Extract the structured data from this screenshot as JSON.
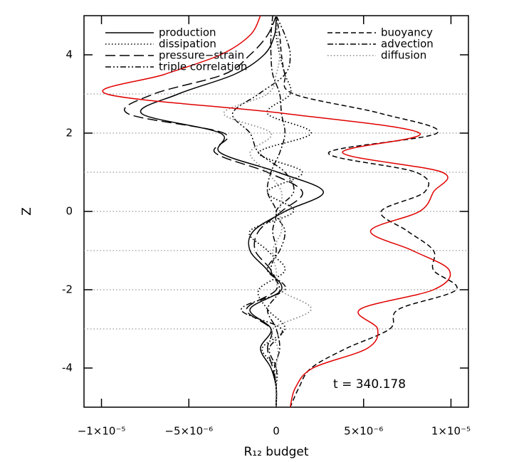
{
  "chart_data": {
    "type": "line",
    "x_label": "R₁₂ budget",
    "y_label": "Z",
    "annotation": "t = 340.178",
    "xlim": [
      -1.1e-05,
      1.1e-05
    ],
    "ylim": [
      -5,
      5
    ],
    "xticks": [
      {
        "value": -1e-05,
        "label": "−1×10⁻⁵"
      },
      {
        "value": -5e-06,
        "label": "−5×10⁻⁶"
      },
      0,
      {
        "value": 5e-06,
        "label": "5×10⁻⁶"
      },
      {
        "value": 1e-05,
        "label": "1×10⁻⁵"
      }
    ],
    "yticks": [
      -4,
      -2,
      0,
      2,
      4
    ],
    "reference_lines": [
      3,
      2,
      1,
      0,
      -1,
      -2,
      -3
    ],
    "y": [
      5,
      4.5,
      4,
      3.5,
      3,
      2.5,
      2,
      1.5,
      1,
      0.5,
      0,
      -0.5,
      -1,
      -1.5,
      -2,
      -2.5,
      -3,
      -3.5,
      -4,
      -4.5,
      -5
    ],
    "series": [
      {
        "name": "production",
        "color": "#000000",
        "style": "solid",
        "values": [
          0,
          -1e-07,
          -7e-07,
          -2.4e-06,
          -5.6e-06,
          -7.7e-06,
          -3.2e-06,
          -3.2e-06,
          1e-07,
          2.7e-06,
          5e-07,
          -1.3e-06,
          -1.5e-06,
          -5e-07,
          3e-07,
          -1.5e-06,
          -3e-07,
          -9e-07,
          -3e-07,
          0,
          0
        ]
      },
      {
        "name": "dissipation",
        "color": "#000000",
        "style": "dotted",
        "values": [
          0,
          0,
          2e-07,
          5e-07,
          8e-07,
          -5e-07,
          2e-06,
          -1e-06,
          1.5e-06,
          -5e-07,
          1e-06,
          -1.5e-06,
          -5e-07,
          5e-07,
          -1e-06,
          -5e-07,
          5e-07,
          -8e-07,
          0,
          0,
          0
        ]
      },
      {
        "name": "pressure−strain",
        "color": "#000000",
        "style": "longdash",
        "values": [
          0,
          -5e-07,
          -1.5e-06,
          -3e-06,
          -7e-06,
          -8.5e-06,
          -3e-06,
          -3.5e-06,
          -5e-07,
          1.5e-06,
          3e-07,
          -1e-06,
          -1.2e-06,
          -3e-07,
          0,
          -1.7e-06,
          -3e-07,
          -5e-07,
          -2e-07,
          0,
          0
        ]
      },
      {
        "name": "triple correlation",
        "color": "#000000",
        "style": "dashdotdot",
        "values": [
          0,
          5e-07,
          8e-07,
          5e-07,
          -1e-06,
          -2.5e-06,
          -1.5e-06,
          -1e-06,
          5e-07,
          1e-06,
          0,
          5e-07,
          2e-07,
          -5e-07,
          5e-07,
          -2e-06,
          3e-07,
          -4e-07,
          0,
          0,
          0
        ]
      },
      {
        "name": "buoyancy",
        "color": "#000000",
        "style": "dashed",
        "values": [
          0,
          2e-07,
          3e-07,
          5e-07,
          1e-06,
          6e-06,
          9.2e-06,
          3e-06,
          8e-06,
          8.5e-06,
          6e-06,
          7.5e-06,
          9e-06,
          9e-06,
          1.03e-05,
          7e-06,
          6.5e-06,
          4e-06,
          2e-06,
          1.3e-06,
          8e-07
        ]
      },
      {
        "name": "advection",
        "color": "#000000",
        "style": "dashdot",
        "values": [
          -2e-07,
          -3e-07,
          -3e-07,
          -2e-07,
          2e-07,
          3e-07,
          5e-07,
          2e-07,
          -3e-07,
          -5e-07,
          0,
          -2e-07,
          0,
          -3e-07,
          2e-07,
          -5e-07,
          0,
          2e-07,
          -1e-07,
          0,
          0
        ]
      },
      {
        "name": "diffusion",
        "color": "#888888",
        "style": "dotted",
        "values": [
          0,
          1e-07,
          2e-07,
          0,
          -5e-07,
          -3e-06,
          -3e-07,
          -1.5e-06,
          -5e-07,
          3e-07,
          2e-07,
          3e-07,
          -2e-07,
          0,
          2e-07,
          2e-06,
          -2e-07,
          1e-07,
          0,
          0,
          0
        ]
      },
      {
        "color": "#e00000",
        "style": "solid",
        "values": [
          -9e-07,
          -1.5e-06,
          -3.2e-06,
          -6.4e-06,
          -9.7e-06,
          5e-07,
          8.2e-06,
          3.8e-06,
          9.5e-06,
          9e-06,
          8.2e-06,
          5.4e-06,
          7.8e-06,
          9.9e-06,
          9e-06,
          4.8e-06,
          5.8e-06,
          5.2e-06,
          2.1e-06,
          1.1e-06,
          8e-07
        ]
      }
    ]
  }
}
